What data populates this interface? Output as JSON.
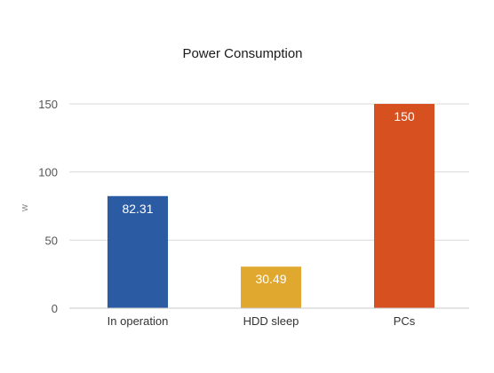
{
  "chart_data": {
    "type": "bar",
    "title": "Power Consumption",
    "xlabel": "",
    "ylabel": "w",
    "categories": [
      "In operation",
      "HDD sleep",
      "PCs"
    ],
    "values": [
      82.31,
      30.49,
      150
    ],
    "value_labels": [
      "82.31",
      "30.49",
      "150"
    ],
    "bar_colors": [
      "#2b5ba3",
      "#e0a82e",
      "#d75020"
    ],
    "ylim": [
      0,
      150
    ],
    "yticks": [
      0,
      50,
      100,
      150
    ],
    "ytick_labels": [
      "0",
      "50",
      "100",
      "150"
    ],
    "grid": true,
    "legend": "none"
  }
}
